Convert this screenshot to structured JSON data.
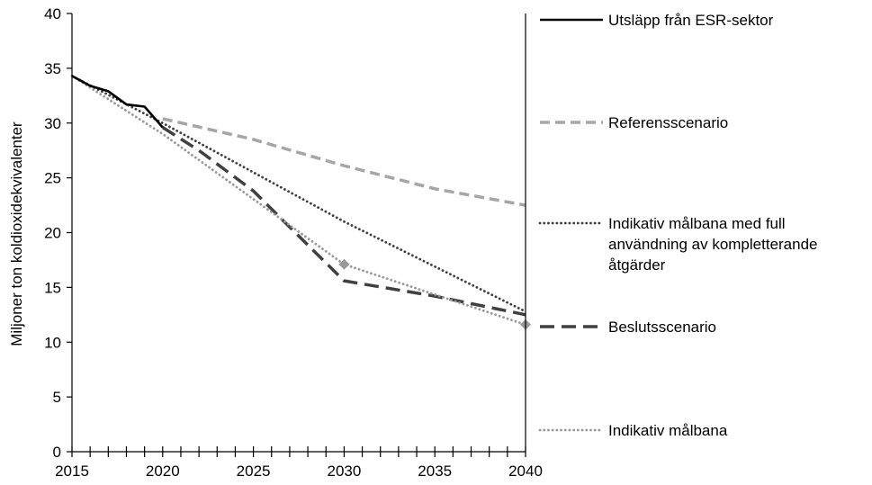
{
  "chart_data": {
    "type": "line",
    "title": "",
    "xlabel": "",
    "ylabel": "Miljoner ton koldioxidekvivalenter",
    "xlim": [
      2015,
      2040
    ],
    "ylim": [
      0,
      40
    ],
    "xticks": [
      "2015",
      "2020",
      "2025",
      "2030",
      "2035",
      "2040"
    ],
    "yticks": [
      "0",
      "5",
      "10",
      "15",
      "20",
      "25",
      "30",
      "35",
      "40"
    ],
    "grid": false,
    "legend_position": "right",
    "series": [
      {
        "name": "Utsläpp från ESR-sektor",
        "style": "solid",
        "color": "#000000",
        "x": [
          2015,
          2016,
          2017,
          2018,
          2019,
          2020
        ],
        "y": [
          34.3,
          33.4,
          32.9,
          31.7,
          31.5,
          29.6
        ]
      },
      {
        "name": "Referensscenario",
        "style": "dash",
        "color": "#a6a6a6",
        "x": [
          2020,
          2025,
          2030,
          2035,
          2040
        ],
        "y": [
          30.4,
          28.5,
          26.1,
          24.0,
          22.5
        ]
      },
      {
        "name": "Indikativ målbana med full användning av kompletterande åtgärder",
        "legend_lines": [
          "Indikativ målbana med full",
          "användning av kompletterande",
          "åtgärder"
        ],
        "style": "dot",
        "color": "#404040",
        "x": [
          2015,
          2020,
          2030,
          2040
        ],
        "y": [
          34.3,
          30.0,
          21.0,
          12.8
        ]
      },
      {
        "name": "Beslutsscenario",
        "style": "longdash",
        "color": "#404040",
        "x": [
          2020,
          2022,
          2025,
          2027,
          2030,
          2035,
          2040
        ],
        "y": [
          29.6,
          27.5,
          23.8,
          20.5,
          15.6,
          14.2,
          12.5
        ]
      },
      {
        "name": "Indikativ målbana",
        "style": "dot",
        "color": "#999999",
        "marker_points": [
          [
            2030,
            17.1
          ],
          [
            2040,
            11.6
          ]
        ],
        "x": [
          2015,
          2020,
          2030,
          2040
        ],
        "y": [
          34.3,
          29.0,
          17.1,
          11.6
        ]
      }
    ]
  }
}
